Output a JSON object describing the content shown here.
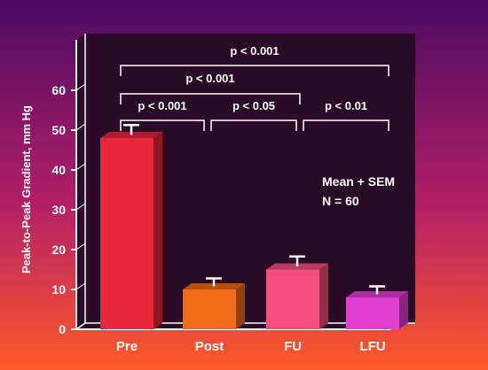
{
  "chart_data": {
    "type": "bar",
    "ylabel": "Peak-to-Peak Gradient, mm Hg",
    "ylim": [
      0,
      65
    ],
    "yticks": [
      0,
      10,
      20,
      30,
      40,
      50,
      60
    ],
    "categories": [
      "Pre",
      "Post",
      "FU",
      "LFU"
    ],
    "values": [
      48,
      10,
      15,
      8
    ],
    "errors": [
      2.5,
      2,
      2.5,
      2
    ],
    "bar_colors": [
      "#e8283a",
      "#f06a18",
      "#f4507e",
      "#e23fd2"
    ],
    "annotation": {
      "line1": "Mean + SEM",
      "line2": "N = 60"
    },
    "comparisons": [
      {
        "from": 0,
        "to": 3,
        "label": "p < 0.001"
      },
      {
        "from": 0,
        "to": 2,
        "label": "p < 0.001"
      },
      {
        "from": 0,
        "to": 1,
        "label": "p < 0.001"
      },
      {
        "from": 1,
        "to": 2,
        "label": "p < 0.05"
      },
      {
        "from": 2,
        "to": 3,
        "label": "p < 0.01"
      }
    ]
  },
  "colors": {
    "bg_top": "#4a0b63",
    "bg_mid": "#b21f66",
    "bg_bottom": "#ff5a2a",
    "panel": "#2a0b27",
    "text": "#ffffff"
  }
}
